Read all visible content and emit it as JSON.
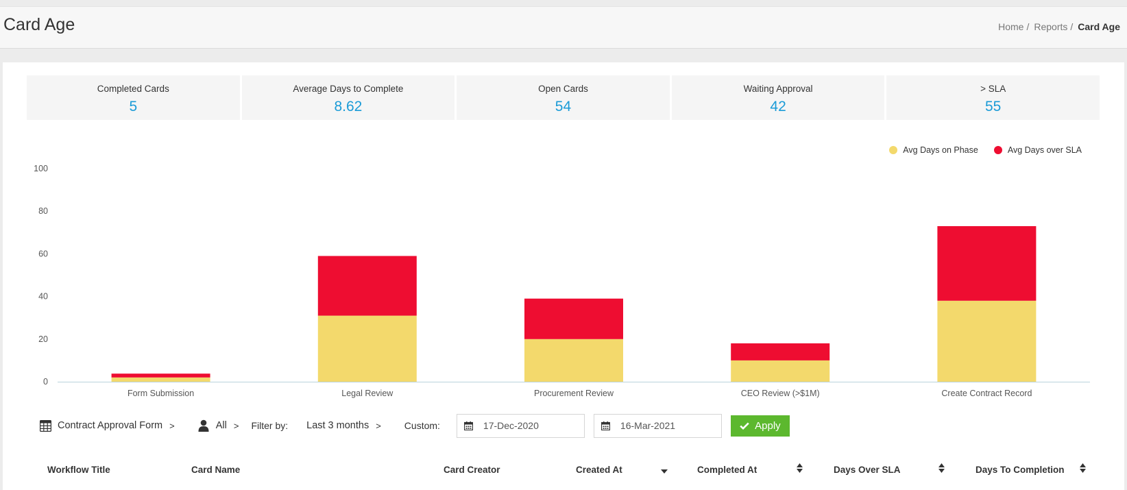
{
  "header": {
    "title": "Card Age",
    "breadcrumb": [
      {
        "label": "Home"
      },
      {
        "label": "Reports"
      },
      {
        "label": "Card Age"
      }
    ],
    "separator": "/"
  },
  "stats": [
    {
      "label": "Completed Cards",
      "value": "5"
    },
    {
      "label": "Average Days to Complete",
      "value": "8.62"
    },
    {
      "label": "Open Cards",
      "value": "54"
    },
    {
      "label": "Waiting Approval",
      "value": "42"
    },
    {
      "label": "> SLA",
      "value": "55"
    }
  ],
  "colors": {
    "accent": "#1a9bd7",
    "phase": "#f3d96c",
    "over_sla": "#ee0d31",
    "apply": "#5cb82e"
  },
  "chart_data": {
    "type": "bar",
    "stacked": true,
    "categories": [
      "Form Submission",
      "Legal Review",
      "Procurement Review",
      "CEO Review (>$1M)",
      "Create Contract Record"
    ],
    "series": [
      {
        "name": "Avg Days on Phase",
        "color": "#f3d96c",
        "values": [
          2,
          31,
          20,
          10,
          38
        ]
      },
      {
        "name": "Avg Days over SLA",
        "color": "#ee0d31",
        "values": [
          1.8,
          28,
          19,
          8,
          35
        ]
      }
    ],
    "ylim": [
      0,
      100
    ],
    "yticks": [
      0,
      20,
      40,
      60,
      80,
      100
    ],
    "legend": "top-right",
    "grid": false
  },
  "filters": {
    "form": "Contract Approval Form",
    "user": "All",
    "filter_by_label": "Filter by:",
    "range": "Last 3 months",
    "custom_label": "Custom:",
    "start_date": "17-Dec-2020",
    "end_date": "16-Mar-2021",
    "apply_label": "Apply",
    "chevron": ">",
    "icons": {
      "form": "table-icon",
      "user": "user-icon",
      "date": "calendar-icon",
      "apply": "check-icon"
    }
  },
  "table": {
    "columns": [
      {
        "label": "Workflow Title",
        "sort": "none"
      },
      {
        "label": "Card Name",
        "sort": "none"
      },
      {
        "label": "Card Creator",
        "sort": "none"
      },
      {
        "label": "Created At",
        "sort": "desc"
      },
      {
        "label": "Completed At",
        "sort": "both"
      },
      {
        "label": "Days Over SLA",
        "sort": "both"
      },
      {
        "label": "Days To Completion",
        "sort": "both"
      }
    ]
  }
}
